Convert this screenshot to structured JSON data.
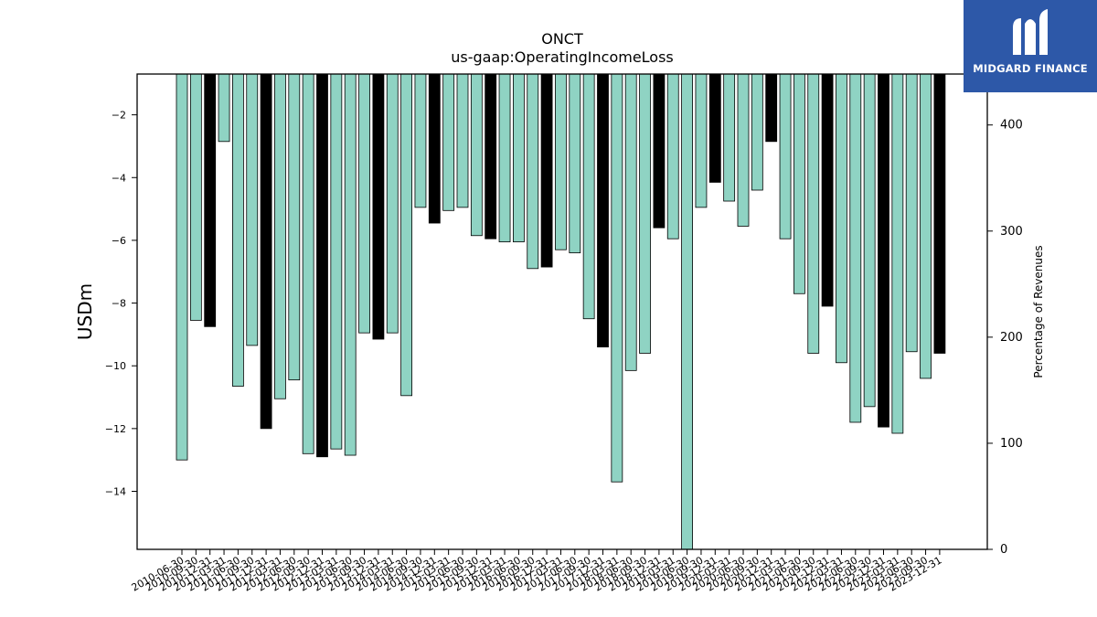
{
  "brand": {
    "name": "MIDGARD FINANCE",
    "color": "#2d58a8",
    "logo_icon": "midgard-logo-icon"
  },
  "chart_data": {
    "type": "bar",
    "title": "ONCT",
    "subtitle": "us-gaap:OperatingIncomeLoss",
    "ylabel": "USDm",
    "ylabel_right": "Percentage of Revenues",
    "ylim": [
      -15.85,
      -0.7
    ],
    "ylim_right": [
      0,
      448
    ],
    "yticks": [
      -2,
      -4,
      -6,
      -8,
      -10,
      -12,
      -14
    ],
    "yticks_right": [
      0,
      100,
      200,
      300,
      400
    ],
    "grid": false,
    "colors": {
      "quarter": "#8fd3c3",
      "annual": "#000000"
    },
    "categories": [
      "2010-06-30",
      "2010-09-30",
      "2010-12-31",
      "2011-03-31",
      "2011-06-30",
      "2011-09-30",
      "2011-12-31",
      "2012-03-31",
      "2012-06-30",
      "2012-09-30",
      "2012-12-31",
      "2013-03-31",
      "2013-06-30",
      "2013-09-30",
      "2013-12-31",
      "2014-03-31",
      "2014-06-30",
      "2014-09-30",
      "2014-12-31",
      "2015-03-31",
      "2015-06-30",
      "2015-09-30",
      "2015-12-31",
      "2016-03-31",
      "2016-06-30",
      "2016-09-30",
      "2016-12-31",
      "2017-03-31",
      "2017-06-30",
      "2017-09-30",
      "2017-12-31",
      "2018-03-31",
      "2018-06-30",
      "2018-09-30",
      "2018-12-31",
      "2019-03-31",
      "2019-06-30",
      "2019-09-30",
      "2019-12-31",
      "2020-03-31",
      "2020-06-30",
      "2020-09-30",
      "2020-12-31",
      "2021-03-31",
      "2021-06-30",
      "2021-09-30",
      "2021-12-31",
      "2022-03-31",
      "2022-06-30",
      "2022-09-30",
      "2022-12-31",
      "2023-03-31",
      "2023-06-30",
      "2023-09-30",
      "2023-12-31"
    ],
    "values": [
      -13.0,
      -8.55,
      -8.75,
      -2.85,
      -10.65,
      -9.35,
      -12.0,
      -11.05,
      -10.45,
      -12.8,
      -12.9,
      -12.65,
      -12.85,
      -8.95,
      -9.15,
      -8.95,
      -10.95,
      -4.95,
      -5.45,
      -5.05,
      -4.95,
      -5.85,
      -5.95,
      -6.05,
      -6.05,
      -6.9,
      -6.85,
      -6.3,
      -6.4,
      -8.5,
      -9.4,
      -13.7,
      -10.15,
      -9.6,
      -5.6,
      -5.95,
      -15.85,
      -4.95,
      -4.15,
      -4.75,
      -5.55,
      -4.4,
      -2.85,
      -5.95,
      -7.7,
      -9.6,
      -8.1,
      -9.9,
      -11.8,
      -11.3,
      -11.95,
      -12.15,
      -9.55,
      -10.4,
      -9.6
    ],
    "annual": [
      false,
      false,
      true,
      false,
      false,
      false,
      true,
      false,
      false,
      false,
      true,
      false,
      false,
      false,
      true,
      false,
      false,
      false,
      true,
      false,
      false,
      false,
      true,
      false,
      false,
      false,
      true,
      false,
      false,
      false,
      true,
      false,
      false,
      false,
      true,
      false,
      false,
      false,
      true,
      false,
      false,
      false,
      true,
      false,
      false,
      false,
      true,
      false,
      false,
      false,
      true,
      false,
      false,
      false,
      true
    ]
  }
}
